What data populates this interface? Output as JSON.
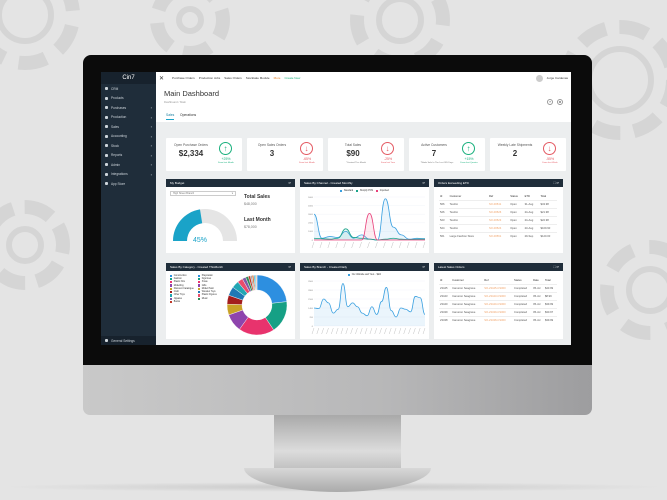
{
  "sidebar": {
    "logo": "Cin7",
    "items": [
      {
        "label": "CRM"
      },
      {
        "label": "Products"
      },
      {
        "label": "Purchases",
        "chevron": true
      },
      {
        "label": "Production",
        "chevron": true
      },
      {
        "label": "Sales",
        "chevron": true
      },
      {
        "label": "Accounting",
        "chevron": true
      },
      {
        "label": "Stock",
        "chevron": true
      },
      {
        "label": "Reports",
        "chevron": true
      },
      {
        "label": "Admin",
        "chevron": true
      },
      {
        "label": "Integrations",
        "chevron": true
      },
      {
        "label": "App Store"
      }
    ],
    "settings": "General Settings"
  },
  "topbar": {
    "close": "✕",
    "links": [
      "Purchase Orders",
      "Production Jobs",
      "Sales Orders",
      "Stocktake Module"
    ],
    "more": "More",
    "create": "Create New",
    "user": "Jorge Cardenas"
  },
  "header": {
    "title": "Main Dashboard",
    "breadcrumb": "Dashboard / Main",
    "help": "?",
    "settings": "⚙",
    "tabs": [
      "Sales",
      "Operations"
    ]
  },
  "kpis": [
    {
      "label": "Open Purchase Orders",
      "value": "$2,334",
      "note": "",
      "trend": "up",
      "pct": "+25%",
      "from": "From last Month"
    },
    {
      "label": "Open Sales Orders",
      "value": "3",
      "note": "",
      "trend": "down",
      "pct": "-65%",
      "from": "From last Month"
    },
    {
      "label": "Total Sales",
      "value": "$90",
      "note": "*Created This Month",
      "trend": "down",
      "pct": "-25%",
      "from": "From last Year"
    },
    {
      "label": "Active Customers",
      "value": "7",
      "note": "*Made Sale In The Last 365 Days",
      "trend": "up",
      "pct": "+15%",
      "from": "From last Quarter"
    },
    {
      "label": "Weekly Late Shipments",
      "value": "2",
      "note": "",
      "trend": "down",
      "pct": "-55%",
      "from": "From last Week"
    }
  ],
  "budget": {
    "title": "My Budget",
    "branch": "High Street Branch",
    "total_label": "Total Sales",
    "total": "$48,000",
    "last_label": "Last Month",
    "last": "$78,000",
    "percent": "45%",
    "fraction": 0.45
  },
  "channel": {
    "title": "Sales By Channel - Created Monthly",
    "legend": [
      "Standard",
      "Shopify POS",
      "Imported"
    ],
    "colors": [
      "#3aa0e0",
      "#1aa38a",
      "#e8407a"
    ],
    "series": [
      [
        3000,
        200,
        400,
        300,
        1000,
        200,
        600,
        100,
        0,
        4800,
        1500,
        600,
        100,
        200,
        150
      ],
      [
        200,
        150,
        100,
        200,
        1300,
        300,
        200,
        100,
        0,
        100,
        200,
        100,
        50,
        100,
        100
      ],
      [
        0,
        0,
        0,
        0,
        0,
        0,
        0,
        3100,
        0,
        0,
        0,
        0,
        0,
        0,
        0
      ]
    ],
    "ymax": 5000
  },
  "etd": {
    "title": "Orders Exceeding ETD",
    "columns": [
      "Id",
      "Customer",
      "Ref",
      "Status",
      "ETD",
      "Total"
    ],
    "rows": [
      [
        "566",
        "TestCo",
        "SO-00541",
        "Open",
        "31-Aug",
        "$43.98"
      ],
      [
        "526",
        "TestCo",
        "SO-00526",
        "Open",
        "24-Aug",
        "$21.98"
      ],
      [
        "523",
        "TestCo",
        "SO-00523",
        "Open",
        "24-Aug",
        "$22.98"
      ],
      [
        "524",
        "TestCo",
        "SO-00524",
        "Open",
        "23-Aug",
        "$109.90"
      ],
      [
        "561",
        "Large Fashion Store",
        "SO-00561",
        "Open",
        "29-Sep",
        "$120.00"
      ]
    ]
  },
  "category": {
    "title": "Sales By Category - Created ThisMonth",
    "legend": [
      "Construction",
      "Playstation",
      "Fashion",
      "Figurines",
      "Plastic Kits",
      "Xmas",
      "Modelling",
      "Gifts",
      "Discount Catalogue",
      "Model Paint",
      "Craft",
      "Wooden Toys",
      "Other Toys",
      "Plastic Figures",
      "Jigsaws",
      "Music",
      "Books"
    ],
    "colors": [
      "#2d8fe0",
      "#2d8fe0",
      "#16a085",
      "#16a085",
      "#e8336d",
      "#e8336d",
      "#8e44ad",
      "#8e44ad",
      "#c9a227",
      "#c9a227",
      "#a31d1d",
      "#1f78b4",
      "#22a6b3",
      "#e84c6c",
      "#7d5ba6",
      "#2e8b57",
      "#c0392b"
    ],
    "values": [
      24,
      18,
      20,
      10,
      6,
      5,
      5,
      4,
      3,
      2,
      1.5,
      1.2,
      1,
      0.8,
      0.8,
      0.6,
      0.5
    ]
  },
  "branch": {
    "title": "Sales By Branch - Created Daily",
    "legend": "Our Website and Your... $k/2",
    "values": [
      1400,
      1350,
      2100,
      1800,
      1000,
      1300,
      3300,
      1500,
      1800,
      1500,
      1000,
      800,
      1500,
      900,
      1900,
      3000,
      1200,
      700,
      1400,
      1300,
      1100,
      2300,
      2200,
      900
    ],
    "ymax": 3500
  },
  "latest": {
    "title": "Latest Sales Orders",
    "columns": [
      "Id",
      "Customer",
      "Ref",
      "Status",
      "Date",
      "Total"
    ],
    "rows": [
      [
        "23445",
        "Cameron Seagrave",
        "SO-23445-CS000",
        "Completed",
        "05-Jul",
        "$43.99"
      ],
      [
        "23443",
        "Cameron Seagrave",
        "SO-23443-CS000",
        "Completed",
        "05-Jul",
        "$8.99"
      ],
      [
        "23440",
        "Cameron Seagrave",
        "SO-23440-CS000",
        "Completed",
        "05-Jul",
        "$39.99"
      ],
      [
        "23439",
        "Cameron Seagrave",
        "SO-23439-CS000",
        "Completed",
        "05-Jul",
        "$30.97"
      ],
      [
        "23438",
        "Cameron Seagrave",
        "SO-23438-CS000",
        "Completed",
        "05-Jul",
        "$39.99"
      ]
    ]
  }
}
